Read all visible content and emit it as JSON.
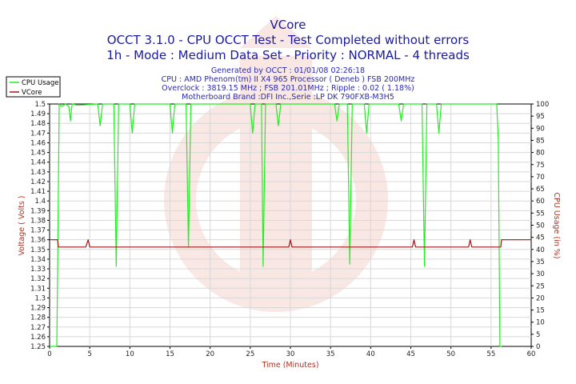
{
  "chart_data": {
    "type": "line",
    "title": "VCore",
    "subtitle_lines": [
      "OCCT 3.1.0 - CPU OCCT Test - Test Completed without errors",
      "1h - Mode : Medium Data Set - Priority : NORMAL - 4 threads"
    ],
    "info_lines": [
      "Generated by OCCT : 01/01/08 02:26:18",
      "CPU : AMD Phenom(tm) II X4 965 Processor ( Deneb ) FSB 200MHz",
      "Overclock : 3819.15 MHz ; FSB 201.01MHz ; Ripple : 0.02 ( 1.18%)",
      "Motherboard Brand :DFI Inc.,Serie :LP DK 790FXB-M3H5"
    ],
    "xlabel": "Time (Minutes)",
    "ylabel_left": "Voltage ( Volts )",
    "ylabel_right": "CPU Usage (in %)",
    "xlim": [
      0,
      60
    ],
    "ylim_left": [
      1.25,
      1.5
    ],
    "ylim_right": [
      0,
      100
    ],
    "x_ticks": [
      "0",
      "5",
      "10",
      "15",
      "20",
      "25",
      "30",
      "35",
      "40",
      "45",
      "50",
      "55",
      "60"
    ],
    "y_left_ticks": [
      "1.5",
      "1.49",
      "1.48",
      "1.47",
      "1.46",
      "1.45",
      "1.44",
      "1.43",
      "1.42",
      "1.41",
      "1.4",
      "1.39",
      "1.38",
      "1.37",
      "1.36",
      "1.35",
      "1.34",
      "1.33",
      "1.32",
      "1.31",
      "1.3",
      "1.29",
      "1.28",
      "1.27",
      "1.26",
      "1.25"
    ],
    "y_right_ticks": [
      "100",
      "95",
      "90",
      "85",
      "80",
      "75",
      "70",
      "65",
      "60",
      "55",
      "50",
      "45",
      "40",
      "35",
      "30",
      "25",
      "20",
      "15",
      "10",
      "5",
      "0"
    ],
    "grid": true,
    "legend_position": "top-left",
    "series": [
      {
        "name": "CPU Usage",
        "axis": "right",
        "color": "#22ee22",
        "points": [
          [
            0,
            0
          ],
          [
            0.9,
            0
          ],
          [
            1.0,
            30
          ],
          [
            1.2,
            100
          ],
          [
            1.5,
            99
          ],
          [
            2.0,
            100
          ],
          [
            2.4,
            99
          ],
          [
            2.6,
            93
          ],
          [
            2.8,
            100
          ],
          [
            3.5,
            99.5
          ],
          [
            6.0,
            100
          ],
          [
            6.3,
            91
          ],
          [
            6.6,
            100
          ],
          [
            8.0,
            100
          ],
          [
            8.3,
            33
          ],
          [
            8.6,
            100
          ],
          [
            10.0,
            100
          ],
          [
            10.3,
            88
          ],
          [
            10.6,
            100
          ],
          [
            15.0,
            100
          ],
          [
            15.3,
            88
          ],
          [
            15.6,
            100
          ],
          [
            17.0,
            100
          ],
          [
            17.3,
            41
          ],
          [
            17.6,
            100
          ],
          [
            25.0,
            100
          ],
          [
            25.3,
            88
          ],
          [
            25.6,
            100
          ],
          [
            26.4,
            100
          ],
          [
            26.6,
            33
          ],
          [
            26.9,
            100
          ],
          [
            28.2,
            100
          ],
          [
            28.5,
            91
          ],
          [
            28.8,
            100
          ],
          [
            35.5,
            100
          ],
          [
            35.8,
            93
          ],
          [
            36.1,
            100
          ],
          [
            37.1,
            100
          ],
          [
            37.4,
            34
          ],
          [
            37.7,
            100
          ],
          [
            39.2,
            100
          ],
          [
            39.5,
            88
          ],
          [
            39.8,
            100
          ],
          [
            43.5,
            100
          ],
          [
            43.8,
            93
          ],
          [
            44.1,
            100
          ],
          [
            46.4,
            100
          ],
          [
            46.7,
            33
          ],
          [
            47.0,
            100
          ],
          [
            48.2,
            100
          ],
          [
            48.5,
            88
          ],
          [
            48.8,
            100
          ],
          [
            55.7,
            100
          ],
          [
            55.9,
            85
          ],
          [
            56.1,
            0
          ],
          [
            56.3,
            0
          ]
        ]
      },
      {
        "name": "VCore",
        "axis": "left",
        "color": "#a01818",
        "points": [
          [
            0,
            1.36
          ],
          [
            1.0,
            1.36
          ],
          [
            1.1,
            1.3525
          ],
          [
            4.5,
            1.3525
          ],
          [
            4.8,
            1.36
          ],
          [
            5.0,
            1.3525
          ],
          [
            29.8,
            1.3525
          ],
          [
            30.0,
            1.36
          ],
          [
            30.2,
            1.3525
          ],
          [
            45.2,
            1.3525
          ],
          [
            45.4,
            1.36
          ],
          [
            45.6,
            1.3525
          ],
          [
            52.2,
            1.3525
          ],
          [
            52.4,
            1.36
          ],
          [
            52.6,
            1.3525
          ],
          [
            56.2,
            1.3525
          ],
          [
            56.3,
            1.36
          ],
          [
            60,
            1.36
          ]
        ]
      }
    ]
  }
}
